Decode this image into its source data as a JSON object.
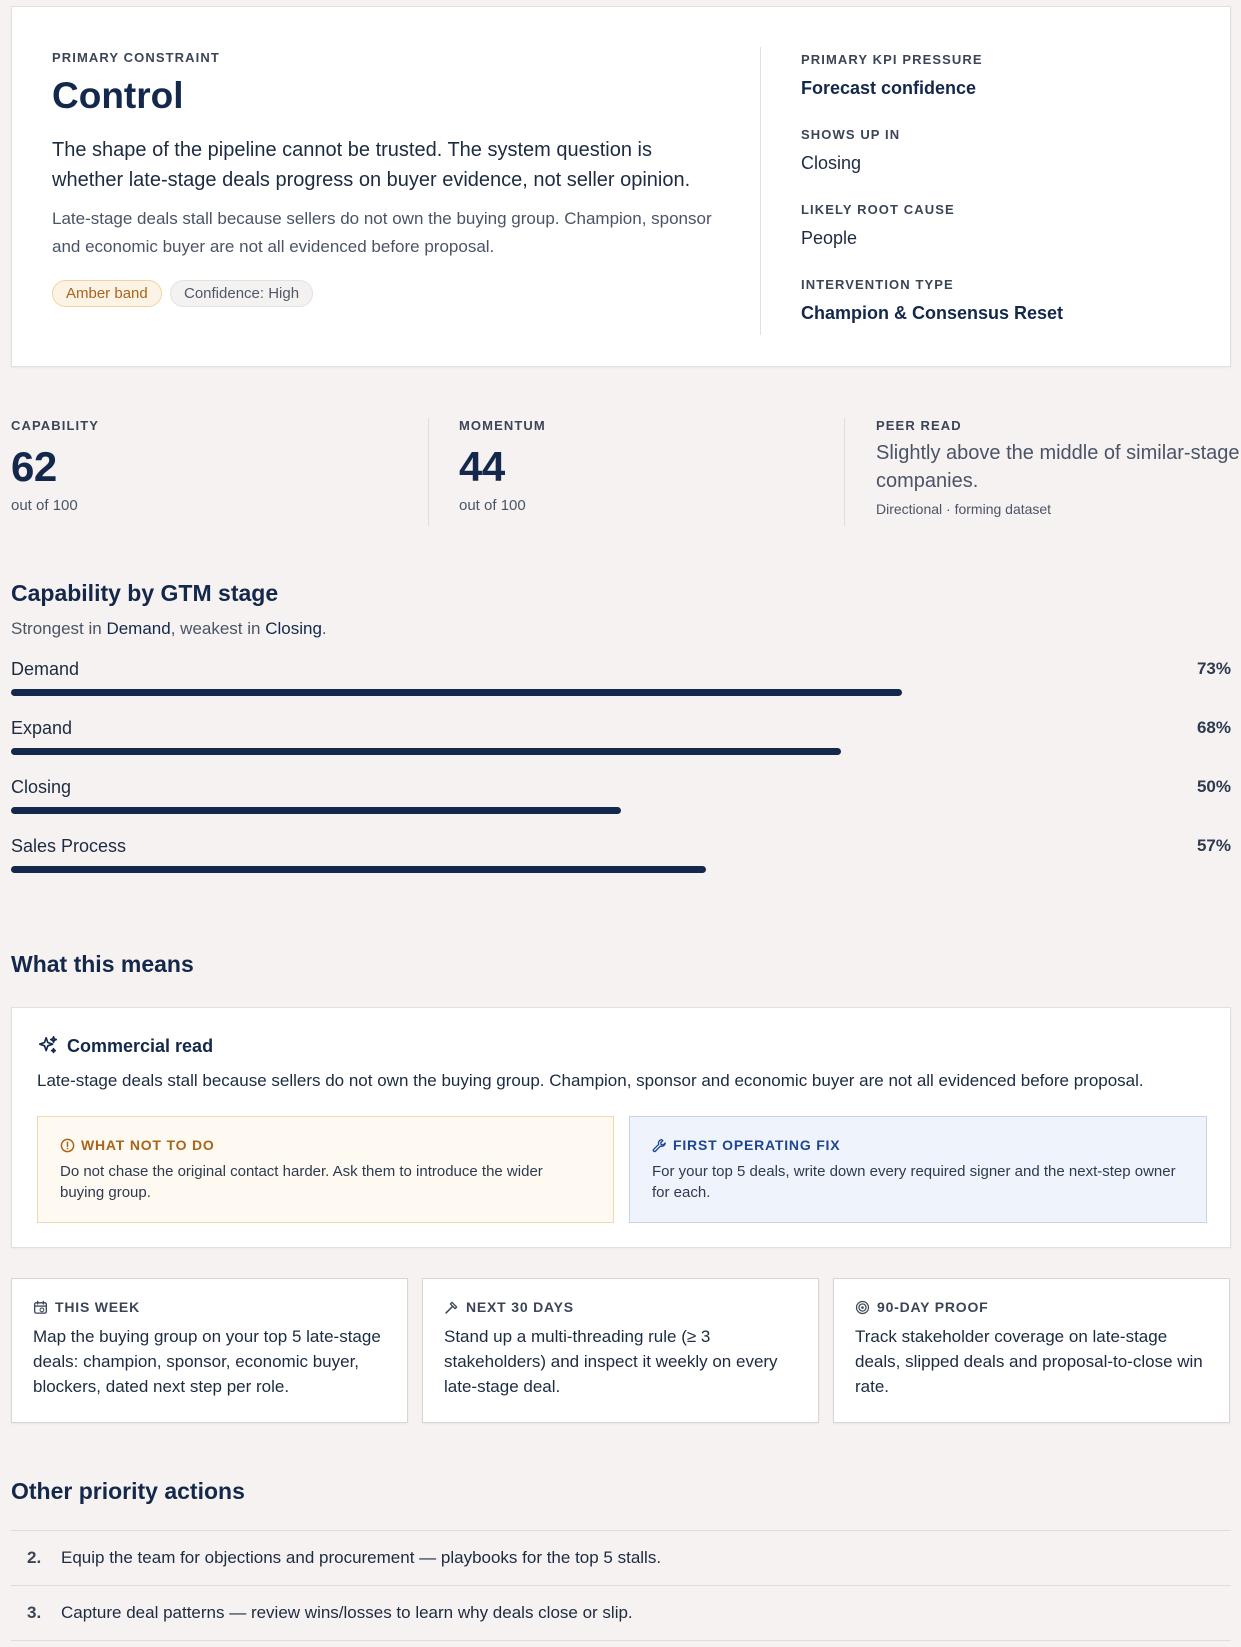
{
  "primary": {
    "eyebrow": "PRIMARY CONSTRAINT",
    "title": "Control",
    "lead": "The shape of the pipeline cannot be trusted. The system question is whether late-stage deals progress on buyer evidence, not seller opinion.",
    "detail": "Late-stage deals stall because sellers do not own the buying group. Champion, sponsor and economic buyer are not all evidenced before proposal.",
    "pills": {
      "band": "Amber band",
      "confidence": "Confidence: High"
    }
  },
  "side": {
    "kpi_label": "PRIMARY KPI PRESSURE",
    "kpi_value": "Forecast confidence",
    "shows_label": "SHOWS UP IN",
    "shows_value": "Closing",
    "root_label": "LIKELY ROOT CAUSE",
    "root_value": "People",
    "intervention_label": "INTERVENTION TYPE",
    "intervention_value": "Champion & Consensus Reset"
  },
  "metrics": {
    "capability": {
      "label": "CAPABILITY",
      "value": "62",
      "sub": "out of 100"
    },
    "momentum": {
      "label": "MOMENTUM",
      "value": "44",
      "sub": "out of 100"
    },
    "peer": {
      "label": "PEER READ",
      "text": "Slightly above the middle of similar-stage companies.",
      "note": "Directional · forming dataset"
    }
  },
  "stages": {
    "title": "Capability by GTM stage",
    "summary_prefix": "Strongest in ",
    "strongest": "Demand",
    "summary_mid": ", weakest in ",
    "weakest": "Closing",
    "summary_suffix": "."
  },
  "chart_data": {
    "type": "bar",
    "orientation": "horizontal",
    "categories": [
      "Demand",
      "Expand",
      "Closing",
      "Sales Process"
    ],
    "values": [
      73,
      68,
      50,
      57
    ],
    "value_labels": [
      "73%",
      "68%",
      "50%",
      "57%"
    ],
    "xlim": [
      0,
      100
    ],
    "bar_color": "#13284a"
  },
  "means": {
    "title": "What this means",
    "commercial_title": "Commercial read",
    "commercial_text": "Late-stage deals stall because sellers do not own the buying group. Champion, sponsor and economic buyer are not all evidenced before proposal.",
    "warn_title": "WHAT NOT TO DO",
    "warn_body": "Do not chase the original contact harder. Ask them to introduce the wider buying group.",
    "fix_title": "FIRST OPERATING FIX",
    "fix_body": "For your top 5 deals, write down every required signer and the next-step owner for each.",
    "icons": {
      "commercial": "sparkle-icon",
      "warn": "alert-circle-icon",
      "fix": "wrench-icon"
    }
  },
  "timeline": [
    {
      "label": "THIS WEEK",
      "icon": "calendar-icon",
      "body": "Map the buying group on your top 5 late-stage deals: champion, sponsor, economic buyer, blockers, dated next step per role."
    },
    {
      "label": "NEXT 30 DAYS",
      "icon": "hammer-icon",
      "body": "Stand up a multi-threading rule (≥ 3 stakeholders) and inspect it weekly on every late-stage deal."
    },
    {
      "label": "90-DAY PROOF",
      "icon": "target-icon",
      "body": "Track stakeholder coverage on late-stage deals, slipped deals and proposal-to-close win rate."
    }
  ],
  "other": {
    "title": "Other priority actions",
    "items": [
      {
        "num": "2.",
        "text": "Equip the team for objections and procurement — playbooks for the top 5 stalls."
      },
      {
        "num": "3.",
        "text": "Capture deal patterns — review wins/losses to learn why deals close or slip."
      }
    ]
  },
  "colors": {
    "navy": "#13284a",
    "amber": "#a8651b",
    "fix_blue": "#1e4590",
    "page_bg": "#f6f2f1"
  }
}
